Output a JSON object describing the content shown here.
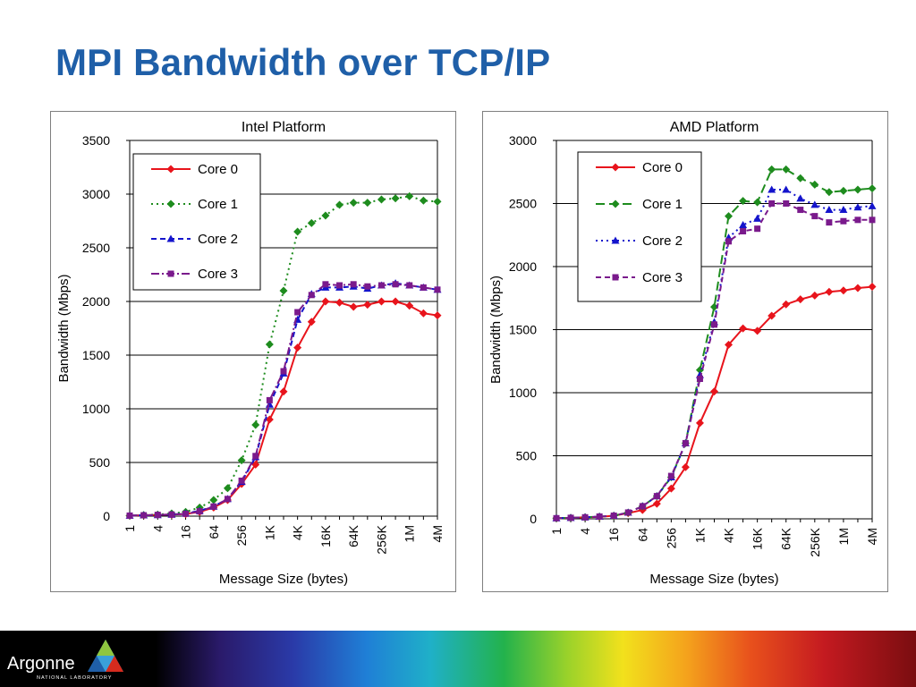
{
  "slide": {
    "title": "MPI Bandwidth over TCP/IP"
  },
  "footer": {
    "logo_text": "Argonne",
    "logo_subtext": "NATIONAL LABORATORY"
  },
  "colors": {
    "title": "#1f5fa8",
    "core0": "#e8141c",
    "core1": "#1e8c1e",
    "core2": "#1414cc",
    "core3": "#7a1a8c"
  },
  "chart_data": [
    {
      "id": "intel",
      "type": "line",
      "title": "Intel Platform",
      "xlabel": "Message Size (bytes)",
      "ylabel": "Bandwidth (Mbps)",
      "ylim": [
        0,
        3500
      ],
      "yticks": [
        0,
        500,
        1000,
        1500,
        2000,
        2500,
        3000,
        3500
      ],
      "xticks": [
        "1",
        "4",
        "16",
        "64",
        "256",
        "1K",
        "4K",
        "16K",
        "64K",
        "256K",
        "1M",
        "4M"
      ],
      "xlim": [
        0,
        22
      ],
      "legend_position": "top-left",
      "series": [
        {
          "name": "Core 0",
          "marker": "diamond",
          "dash": "solid",
          "x": [
            0,
            1,
            2,
            3,
            4,
            5,
            6,
            7,
            8,
            9,
            10,
            11,
            12,
            13,
            14,
            15,
            16,
            17,
            18,
            19,
            20,
            21,
            22
          ],
          "y": [
            5,
            8,
            12,
            15,
            20,
            40,
            80,
            150,
            300,
            480,
            900,
            1160,
            1570,
            1810,
            2000,
            1990,
            1950,
            1970,
            2000,
            2000,
            1960,
            1890,
            1870
          ]
        },
        {
          "name": "Core 1",
          "marker": "diamond",
          "dash": "dotted",
          "x": [
            0,
            1,
            2,
            3,
            4,
            5,
            6,
            7,
            8,
            9,
            10,
            11,
            12,
            13,
            14,
            15,
            16,
            17,
            18,
            19,
            20,
            21,
            22
          ],
          "y": [
            5,
            10,
            15,
            25,
            40,
            80,
            150,
            260,
            520,
            850,
            1600,
            2100,
            2650,
            2730,
            2800,
            2900,
            2920,
            2920,
            2950,
            2960,
            2980,
            2940,
            2930
          ]
        },
        {
          "name": "Core 2",
          "marker": "triangle",
          "dash": "dashed",
          "x": [
            0,
            1,
            2,
            3,
            4,
            5,
            6,
            7,
            8,
            9,
            10,
            11,
            12,
            13,
            14,
            15,
            16,
            17,
            18,
            19,
            20,
            21,
            22
          ],
          "y": [
            5,
            8,
            10,
            15,
            25,
            50,
            90,
            160,
            320,
            550,
            1040,
            1330,
            1830,
            2070,
            2130,
            2130,
            2140,
            2120,
            2150,
            2170,
            2150,
            2130,
            2110
          ]
        },
        {
          "name": "Core 3",
          "marker": "square",
          "dash": "dashdot",
          "x": [
            0,
            1,
            2,
            3,
            4,
            5,
            6,
            7,
            8,
            9,
            10,
            11,
            12,
            13,
            14,
            15,
            16,
            17,
            18,
            19,
            20,
            21,
            22
          ],
          "y": [
            5,
            8,
            12,
            15,
            22,
            45,
            90,
            160,
            330,
            560,
            1080,
            1350,
            1900,
            2060,
            2160,
            2150,
            2160,
            2140,
            2150,
            2160,
            2150,
            2130,
            2110
          ]
        }
      ]
    },
    {
      "id": "amd",
      "type": "line",
      "title": "AMD Platform",
      "xlabel": "Message Size (bytes)",
      "ylabel": "Bandwidth (Mbps)",
      "ylim": [
        0,
        3000
      ],
      "yticks": [
        0,
        500,
        1000,
        1500,
        2000,
        2500,
        3000
      ],
      "xticks": [
        "1",
        "4",
        "16",
        "64",
        "256",
        "1K",
        "4K",
        "16K",
        "64K",
        "256K",
        "1M",
        "4M"
      ],
      "xlim": [
        0,
        22
      ],
      "legend_position": "top-left",
      "series": [
        {
          "name": "Core 0",
          "marker": "diamond",
          "dash": "solid",
          "x": [
            0,
            1,
            2,
            3,
            4,
            5,
            6,
            7,
            8,
            9,
            10,
            11,
            12,
            13,
            14,
            15,
            16,
            17,
            18,
            19,
            20,
            21,
            22
          ],
          "y": [
            5,
            8,
            12,
            15,
            25,
            45,
            70,
            120,
            240,
            410,
            760,
            1010,
            1380,
            1510,
            1490,
            1610,
            1700,
            1740,
            1770,
            1800,
            1810,
            1830,
            1840
          ]
        },
        {
          "name": "Core 1",
          "marker": "diamond",
          "dash": "longdash",
          "x": [
            0,
            1,
            2,
            3,
            4,
            5,
            6,
            7,
            8,
            9,
            10,
            11,
            12,
            13,
            14,
            15,
            16,
            17,
            18,
            19,
            20,
            21,
            22
          ],
          "y": [
            5,
            8,
            12,
            18,
            25,
            50,
            100,
            180,
            330,
            600,
            1180,
            1680,
            2400,
            2520,
            2510,
            2770,
            2770,
            2700,
            2650,
            2590,
            2600,
            2610,
            2620
          ]
        },
        {
          "name": "Core 2",
          "marker": "triangle",
          "dash": "dotted",
          "x": [
            0,
            1,
            2,
            3,
            4,
            5,
            6,
            7,
            8,
            9,
            10,
            11,
            12,
            13,
            14,
            15,
            16,
            17,
            18,
            19,
            20,
            21,
            22
          ],
          "y": [
            5,
            8,
            12,
            18,
            25,
            50,
            100,
            180,
            330,
            600,
            1140,
            1560,
            2230,
            2330,
            2380,
            2610,
            2610,
            2540,
            2490,
            2450,
            2450,
            2470,
            2480
          ]
        },
        {
          "name": "Core 3",
          "marker": "square",
          "dash": "dashed",
          "x": [
            0,
            1,
            2,
            3,
            4,
            5,
            6,
            7,
            8,
            9,
            10,
            11,
            12,
            13,
            14,
            15,
            16,
            17,
            18,
            19,
            20,
            21,
            22
          ],
          "y": [
            5,
            8,
            12,
            18,
            25,
            50,
            100,
            180,
            340,
            600,
            1110,
            1540,
            2200,
            2280,
            2300,
            2500,
            2500,
            2450,
            2400,
            2350,
            2360,
            2370,
            2370
          ]
        }
      ]
    }
  ]
}
